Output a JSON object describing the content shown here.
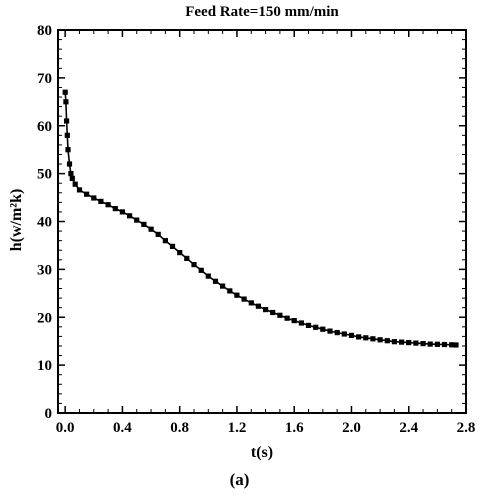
{
  "caption": "(a)",
  "chart_data": {
    "type": "line",
    "title": "Feed Rate=150 mm/min",
    "xlabel": "t(s)",
    "ylabel": "h(w/m²k)",
    "xlim": [
      -0.05,
      2.8
    ],
    "ylim": [
      0,
      80
    ],
    "xticks": [
      0.0,
      0.4,
      0.8,
      1.2,
      1.6,
      2.0,
      2.4,
      2.8
    ],
    "xtick_labels": [
      "0.0",
      "0.4",
      "0.8",
      "1.2",
      "1.6",
      "2.0",
      "2.4",
      "2.8"
    ],
    "yticks": [
      0,
      10,
      20,
      30,
      40,
      50,
      60,
      70,
      80
    ],
    "ytick_labels": [
      "0",
      "10",
      "20",
      "30",
      "40",
      "50",
      "60",
      "70",
      "80"
    ],
    "grid": false,
    "series": [
      {
        "style": "solid line with square markers",
        "color": "#000000",
        "x": [
          0.0,
          0.005,
          0.01,
          0.015,
          0.02,
          0.03,
          0.04,
          0.05,
          0.07,
          0.1,
          0.15,
          0.2,
          0.25,
          0.3,
          0.35,
          0.4,
          0.45,
          0.5,
          0.55,
          0.6,
          0.65,
          0.7,
          0.75,
          0.8,
          0.85,
          0.9,
          0.95,
          1.0,
          1.05,
          1.1,
          1.15,
          1.2,
          1.25,
          1.3,
          1.35,
          1.4,
          1.45,
          1.5,
          1.55,
          1.6,
          1.65,
          1.7,
          1.75,
          1.8,
          1.85,
          1.9,
          1.95,
          2.0,
          2.05,
          2.1,
          2.15,
          2.2,
          2.25,
          2.3,
          2.35,
          2.4,
          2.45,
          2.5,
          2.55,
          2.6,
          2.65,
          2.7,
          2.73
        ],
        "y": [
          67,
          65,
          61,
          58,
          55,
          52,
          50,
          49,
          47.8,
          46.6,
          45.7,
          44.9,
          44.2,
          43.5,
          42.7,
          42.0,
          41.2,
          40.3,
          39.4,
          38.4,
          37.3,
          36.0,
          34.8,
          33.5,
          32.3,
          31.0,
          29.8,
          28.6,
          27.5,
          26.5,
          25.5,
          24.6,
          23.8,
          23.0,
          22.3,
          21.6,
          21.0,
          20.4,
          19.8,
          19.3,
          18.8,
          18.3,
          17.9,
          17.5,
          17.1,
          16.8,
          16.5,
          16.2,
          15.9,
          15.7,
          15.5,
          15.3,
          15.1,
          14.9,
          14.8,
          14.7,
          14.6,
          14.5,
          14.4,
          14.35,
          14.3,
          14.25,
          14.2
        ]
      }
    ]
  }
}
